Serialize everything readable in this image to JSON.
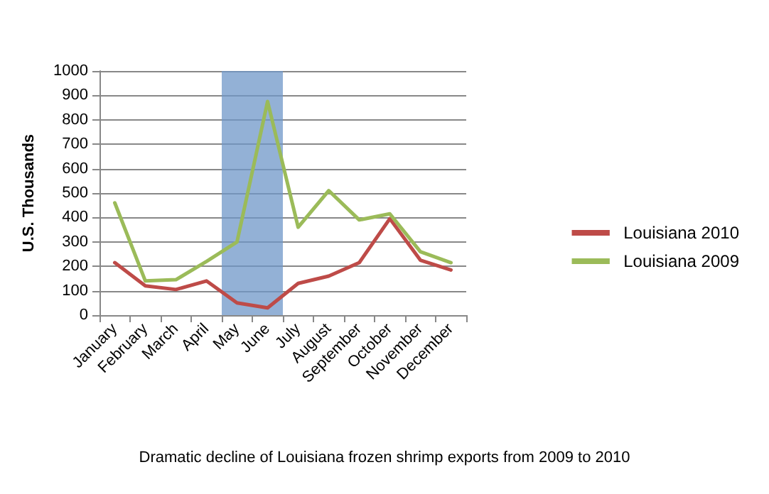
{
  "chart_data": {
    "type": "line",
    "ylabel": "U.S. Thousands",
    "categories": [
      "January",
      "February",
      "March",
      "April",
      "May",
      "June",
      "July",
      "August",
      "September",
      "October",
      "November",
      "December"
    ],
    "series": [
      {
        "name": "Louisiana 2010",
        "color": "#be4b48",
        "values": [
          215,
          120,
          105,
          140,
          50,
          30,
          130,
          160,
          215,
          395,
          225,
          185
        ]
      },
      {
        "name": "Louisiana 2009",
        "color": "#9bbb59",
        "values": [
          460,
          140,
          145,
          220,
          300,
          875,
          360,
          510,
          390,
          415,
          260,
          215
        ]
      }
    ],
    "ylim": [
      0,
      1000
    ],
    "yticks": [
      0,
      100,
      200,
      300,
      400,
      500,
      600,
      700,
      800,
      900,
      1000
    ],
    "grid": "y",
    "legend": "right",
    "marker": "none",
    "line_style": "solid",
    "bands": [
      {
        "axis": "x",
        "from": "May",
        "to": "June",
        "color": "#6f97c8"
      }
    ],
    "annotations": [
      "Dramatic decline of Louisiana frozen shrimp exports from 2009 to 2010"
    ]
  }
}
